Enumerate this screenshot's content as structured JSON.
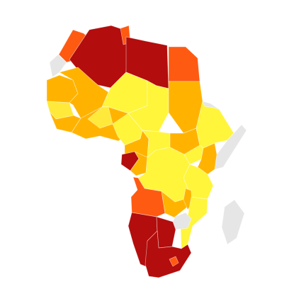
{
  "map": {
    "name": "Africa",
    "colors": {
      "dark_red": "#b30d0d",
      "red_orange": "#ff5a12",
      "orange": "#ffb300",
      "yellow": "#ffe93b",
      "bright_yellow": "#fff53b",
      "no_data": "#e6e6e6",
      "background": "#ffffff"
    },
    "regions": [
      {
        "id": "morocco",
        "color_key": "red_orange"
      },
      {
        "id": "algeria",
        "color_key": "dark_red"
      },
      {
        "id": "tunisia",
        "color_key": "red_orange"
      },
      {
        "id": "libya",
        "color_key": "dark_red"
      },
      {
        "id": "egypt",
        "color_key": "red_orange"
      },
      {
        "id": "western-sahara",
        "color_key": "no_data"
      },
      {
        "id": "mauritania",
        "color_key": "orange"
      },
      {
        "id": "mali",
        "color_key": "orange"
      },
      {
        "id": "niger",
        "color_key": "bright_yellow"
      },
      {
        "id": "chad",
        "color_key": "bright_yellow"
      },
      {
        "id": "sudan",
        "color_key": "orange"
      },
      {
        "id": "senegal",
        "color_key": "yellow"
      },
      {
        "id": "guinea",
        "color_key": "orange"
      },
      {
        "id": "west-africa-coast",
        "color_key": "orange"
      },
      {
        "id": "burkina-faso",
        "color_key": "yellow"
      },
      {
        "id": "nigeria",
        "color_key": "bright_yellow"
      },
      {
        "id": "cameroon",
        "color_key": "orange"
      },
      {
        "id": "central-african-republic",
        "color_key": "bright_yellow"
      },
      {
        "id": "south-sudan",
        "color_key": "orange"
      },
      {
        "id": "ethiopia",
        "color_key": "bright_yellow"
      },
      {
        "id": "eritrea",
        "color_key": "no_data"
      },
      {
        "id": "somalia",
        "color_key": "no_data"
      },
      {
        "id": "gabon",
        "color_key": "dark_red"
      },
      {
        "id": "congo",
        "color_key": "orange"
      },
      {
        "id": "dr-congo",
        "color_key": "bright_yellow"
      },
      {
        "id": "uganda",
        "color_key": "bright_yellow"
      },
      {
        "id": "kenya",
        "color_key": "orange"
      },
      {
        "id": "tanzania",
        "color_key": "bright_yellow"
      },
      {
        "id": "angola",
        "color_key": "red_orange"
      },
      {
        "id": "zambia",
        "color_key": "orange"
      },
      {
        "id": "malawi",
        "color_key": "orange"
      },
      {
        "id": "mozambique",
        "color_key": "bright_yellow"
      },
      {
        "id": "zimbabwe",
        "color_key": "no_data"
      },
      {
        "id": "namibia",
        "color_key": "dark_red"
      },
      {
        "id": "botswana",
        "color_key": "dark_red"
      },
      {
        "id": "south-africa",
        "color_key": "dark_red"
      },
      {
        "id": "lesotho",
        "color_key": "red_orange"
      },
      {
        "id": "madagascar",
        "color_key": "no_data"
      }
    ]
  }
}
